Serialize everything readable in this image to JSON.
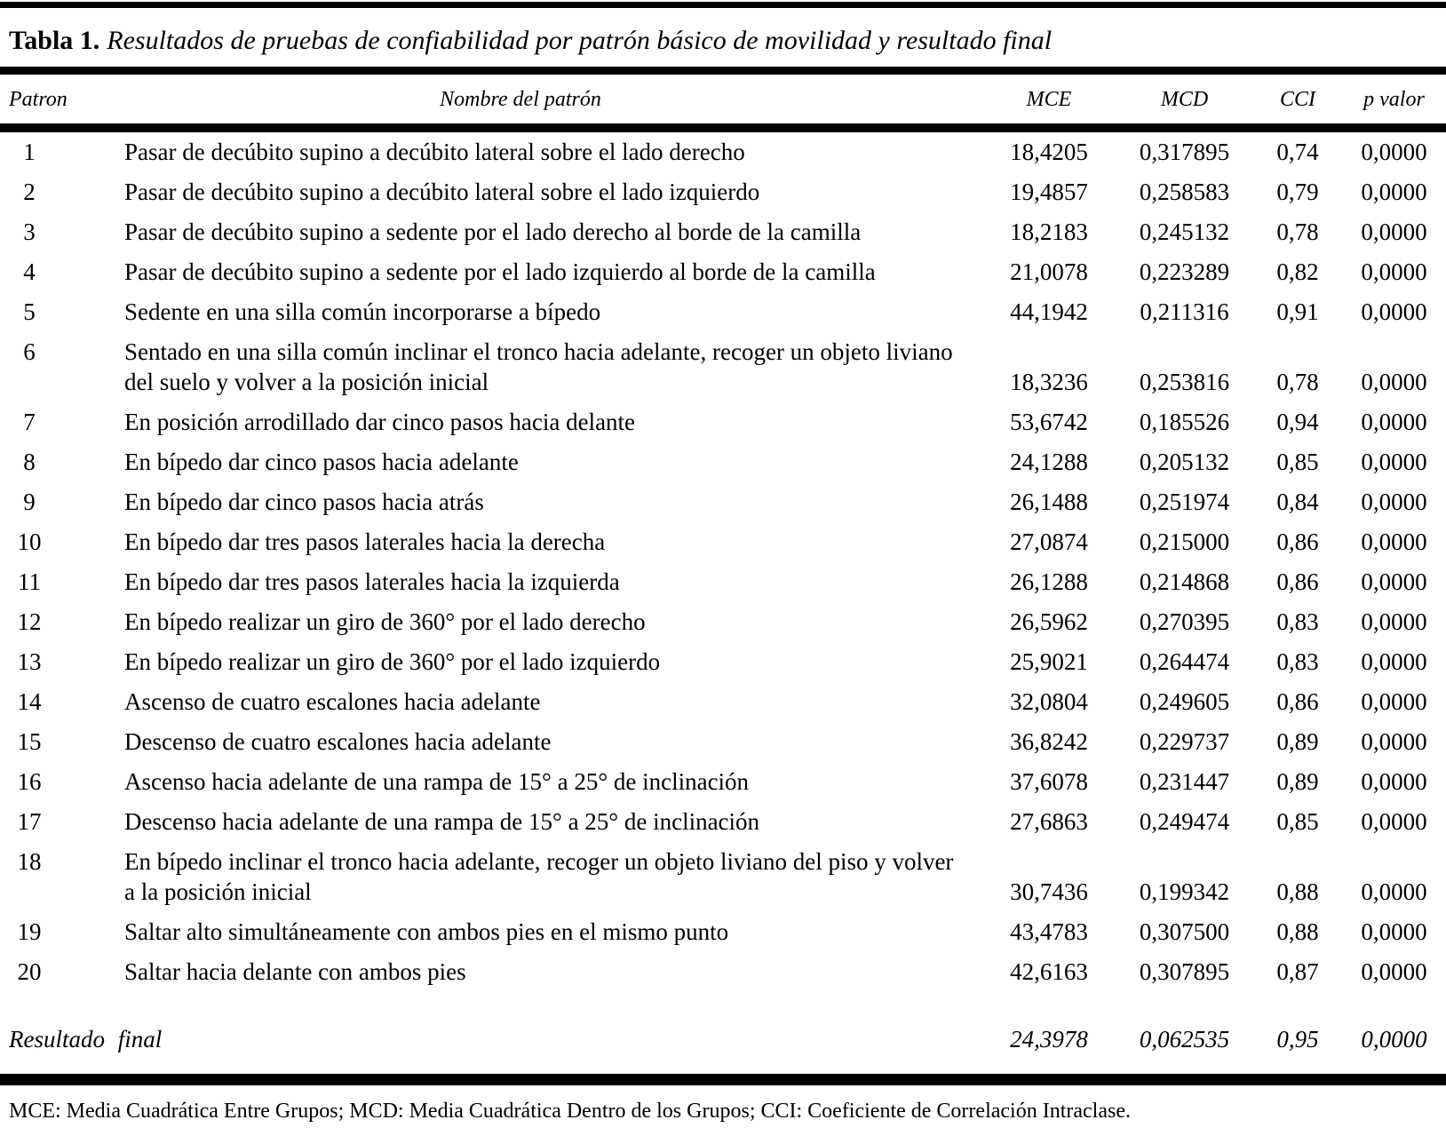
{
  "title": {
    "label": "Tabla 1.",
    "text": "Resultados de pruebas de confiabilidad por patrón básico de movilidad y resultado final"
  },
  "table": {
    "headers": {
      "patron": "Patron",
      "nombre": "Nombre del patrón",
      "mce": "MCE",
      "mcd": "MCD",
      "cci": "CCI",
      "p_valor": "p valor"
    },
    "rows": [
      {
        "num": "1",
        "name": "Pasar de decúbito supino a decúbito lateral sobre el lado derecho",
        "mce": "18,4205",
        "mcd": "0,317895",
        "cci": "0,74",
        "p": "0,0000"
      },
      {
        "num": "2",
        "name": "Pasar de decúbito supino a decúbito lateral sobre el lado izquierdo",
        "mce": "19,4857",
        "mcd": "0,258583",
        "cci": "0,79",
        "p": "0,0000"
      },
      {
        "num": "3",
        "name": "Pasar de decúbito supino a sedente por el lado derecho al borde de la camilla",
        "mce": "18,2183",
        "mcd": "0,245132",
        "cci": "0,78",
        "p": "0,0000"
      },
      {
        "num": "4",
        "name": "Pasar de decúbito supino a sedente por el lado izquierdo al borde de la camilla",
        "mce": "21,0078",
        "mcd": "0,223289",
        "cci": "0,82",
        "p": "0,0000"
      },
      {
        "num": "5",
        "name": "Sedente en una silla común incorporarse a bípedo",
        "mce": "44,1942",
        "mcd": "0,211316",
        "cci": "0,91",
        "p": "0,0000"
      },
      {
        "num": "6",
        "name": "Sentado en una silla común inclinar el tronco hacia adelante, recoger un objeto liviano del suelo y volver a la posición inicial",
        "mce": "18,3236",
        "mcd": "0,253816",
        "cci": "0,78",
        "p": "0,0000"
      },
      {
        "num": "7",
        "name": "En posición arrodillado dar cinco pasos hacia delante",
        "mce": "53,6742",
        "mcd": "0,185526",
        "cci": "0,94",
        "p": "0,0000"
      },
      {
        "num": "8",
        "name": "En bípedo dar cinco pasos hacia adelante",
        "mce": "24,1288",
        "mcd": "0,205132",
        "cci": "0,85",
        "p": "0,0000"
      },
      {
        "num": "9",
        "name": "En bípedo dar cinco pasos hacia atrás",
        "mce": "26,1488",
        "mcd": "0,251974",
        "cci": "0,84",
        "p": "0,0000"
      },
      {
        "num": "10",
        "name": "En bípedo dar tres pasos laterales hacia la derecha",
        "mce": "27,0874",
        "mcd": "0,215000",
        "cci": "0,86",
        "p": "0,0000"
      },
      {
        "num": "11",
        "name": "En bípedo dar tres pasos laterales hacia la izquierda",
        "mce": "26,1288",
        "mcd": "0,214868",
        "cci": "0,86",
        "p": "0,0000"
      },
      {
        "num": "12",
        "name": "En bípedo realizar un giro de 360° por el lado derecho",
        "mce": "26,5962",
        "mcd": "0,270395",
        "cci": "0,83",
        "p": "0,0000"
      },
      {
        "num": "13",
        "name": "En bípedo realizar un giro de 360° por el lado izquierdo",
        "mce": "25,9021",
        "mcd": "0,264474",
        "cci": "0,83",
        "p": "0,0000"
      },
      {
        "num": "14",
        "name": "Ascenso de cuatro escalones hacia adelante",
        "mce": "32,0804",
        "mcd": "0,249605",
        "cci": "0,86",
        "p": "0,0000"
      },
      {
        "num": "15",
        "name": "Descenso de cuatro escalones hacia adelante",
        "mce": "36,8242",
        "mcd": "0,229737",
        "cci": "0,89",
        "p": "0,0000"
      },
      {
        "num": "16",
        "name": "Ascenso hacia adelante de una rampa de 15° a 25° de inclinación",
        "mce": "37,6078",
        "mcd": "0,231447",
        "cci": "0,89",
        "p": "0,0000"
      },
      {
        "num": "17",
        "name": "Descenso hacia adelante de una rampa de 15° a 25° de inclinación",
        "mce": "27,6863",
        "mcd": "0,249474",
        "cci": "0,85",
        "p": "0,0000"
      },
      {
        "num": "18",
        "name": "En bípedo inclinar el tronco hacia adelante, recoger un objeto liviano del piso y volver a la posición inicial",
        "mce": "30,7436",
        "mcd": "0,199342",
        "cci": "0,88",
        "p": "0,0000"
      },
      {
        "num": "19",
        "name": "Saltar alto simultáneamente con ambos pies en el mismo punto",
        "mce": "43,4783",
        "mcd": "0,307500",
        "cci": "0,88",
        "p": "0,0000"
      },
      {
        "num": "20",
        "name": "Saltar hacia delante con ambos pies",
        "mce": "42,6163",
        "mcd": "0,307895",
        "cci": "0,87",
        "p": "0,0000"
      }
    ],
    "total_row": {
      "label": "Resultado final",
      "mce": "24,3978",
      "mcd": "0,062535",
      "cci": "0,95",
      "p": "0,0000"
    }
  },
  "footnote": "MCE: Media Cuadrática Entre Grupos; MCD: Media Cuadrática Dentro de los Grupos; CCI: Coeficiente de Correlación Intraclase."
}
